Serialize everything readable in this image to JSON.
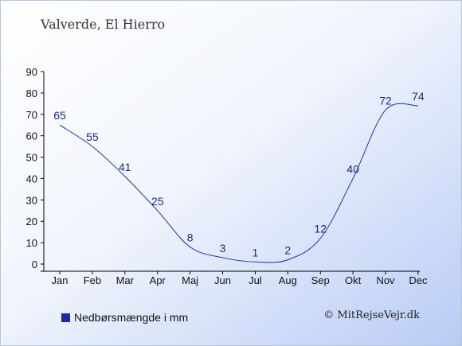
{
  "chart_data": {
    "type": "line",
    "title": "Valverde, El Hierro",
    "categories": [
      "Jan",
      "Feb",
      "Mar",
      "Apr",
      "Maj",
      "Jun",
      "Jul",
      "Aug",
      "Sep",
      "Okt",
      "Nov",
      "Dec"
    ],
    "series": [
      {
        "name": "Nedbørsmængde i mm",
        "values": [
          65,
          55,
          41,
          25,
          8,
          3,
          1,
          2,
          12,
          40,
          72,
          74
        ]
      }
    ],
    "ylim": [
      0,
      90
    ],
    "yticks": [
      0,
      10,
      20,
      30,
      40,
      50,
      60,
      70,
      80,
      90
    ],
    "grid": false,
    "legend": "bottom-left",
    "colors": {
      "line": "#1f2fa0",
      "legend_swatch": "#1a2aa8"
    }
  },
  "footer": {
    "credit": "© MitRejseVejr.dk"
  }
}
